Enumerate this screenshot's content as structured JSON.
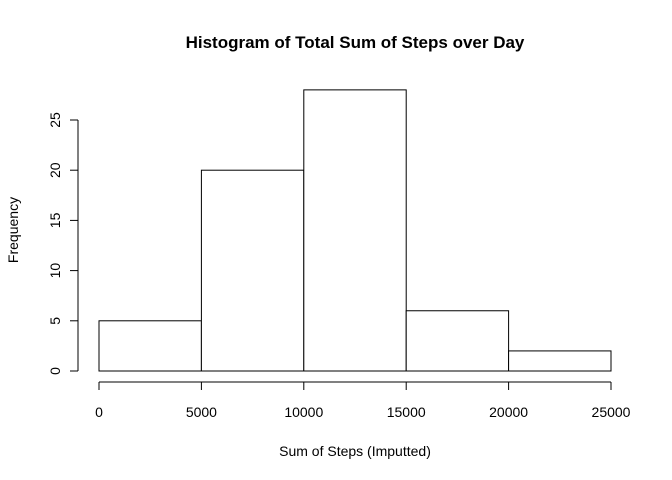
{
  "chart_data": {
    "type": "bar",
    "title": "Histogram of Total Sum of Steps over Day",
    "xlabel": "Sum of Steps (Imputted)",
    "ylabel": "Frequency",
    "bins": [
      {
        "from": 0,
        "to": 5000,
        "value": 5
      },
      {
        "from": 5000,
        "to": 10000,
        "value": 20
      },
      {
        "from": 10000,
        "to": 15000,
        "value": 28
      },
      {
        "from": 15000,
        "to": 20000,
        "value": 6
      },
      {
        "from": 20000,
        "to": 25000,
        "value": 2
      }
    ],
    "xlim": [
      0,
      25000
    ],
    "ylim": [
      0,
      28
    ],
    "x_ticks": [
      "0",
      "5000",
      "10000",
      "15000",
      "20000",
      "25000"
    ],
    "y_ticks": [
      "0",
      "5",
      "10",
      "15",
      "20",
      "25"
    ],
    "grid": false,
    "bar_fill": "#ffffff",
    "bar_stroke": "#000000"
  }
}
